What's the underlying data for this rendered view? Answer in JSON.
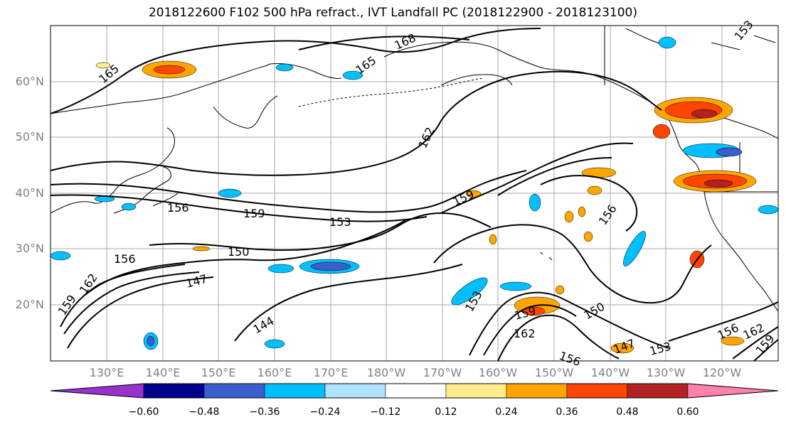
{
  "title": "2018122600 F102 500 hPa refract., IVT Landfall PC (2018122900 - 2018123100)",
  "lat_labels": [
    "60°N",
    "50°N",
    "40°N",
    "30°N",
    "20°N"
  ],
  "lon_labels": [
    "130°E",
    "140°E",
    "150°E",
    "160°E",
    "170°E",
    "180°W",
    "170°W",
    "160°W",
    "150°W",
    "140°W",
    "130°W",
    "120°W"
  ],
  "contour_labels": [
    "168",
    "165",
    "165",
    "162",
    "159",
    "159",
    "156",
    "156",
    "156",
    "153",
    "153",
    "153",
    "150",
    "150",
    "147",
    "147",
    "144",
    "162",
    "162",
    "162",
    "159",
    "159",
    "159",
    "156",
    "156",
    "153"
  ],
  "colorbar": {
    "ticks": [
      "−0.60",
      "−0.48",
      "−0.36",
      "−0.24",
      "−0.12",
      "0.12",
      "0.24",
      "0.36",
      "0.48",
      "0.60"
    ],
    "colors": [
      "#9932CC",
      "#00008B",
      "#3A5FCD",
      "#00BFFF",
      "#B0E2FF",
      "#FFFFFF",
      "#FFEC8B",
      "#FFA500",
      "#FF4500",
      "#B22222",
      "#FF82AB"
    ]
  }
}
